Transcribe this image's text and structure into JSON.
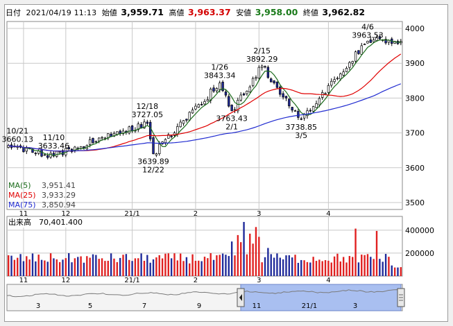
{
  "header": {
    "period_label": "日付",
    "datetime": "2021/04/19 11:13",
    "open_label": "始値",
    "open": "3,959.71",
    "high_label": "高値",
    "high": "3,963.37",
    "low_label": "安値",
    "low": "3,958.00",
    "close_label": "終値",
    "close": "3,962.82"
  },
  "colors": {
    "up": "#ffffff",
    "down": "#1f2a9a",
    "candle_edge": "#000000",
    "ma5": "#1a6b1a",
    "ma25": "#e00000",
    "ma75": "#1f2ad0",
    "high_value": "#d40000",
    "low_value": "#1a7a1a",
    "vol_up": "#e02020",
    "vol_down": "#1f2a9a",
    "navigator_fill": "#a9bff0",
    "grid": "#c8c8c8"
  },
  "legend": [
    {
      "label": "MA(5)",
      "value": "3,951.41",
      "color": "#1a6b1a"
    },
    {
      "label": "MA(25)",
      "value": "3,933.29",
      "color": "#e00000"
    },
    {
      "label": "MA(75)",
      "value": "3,850.94",
      "color": "#1f2ad0"
    }
  ],
  "volume": {
    "label": "出来高",
    "value": "70,401.400",
    "y_ticks": [
      400000,
      200000
    ],
    "y_tick_labels": [
      "400000",
      "200000"
    ]
  },
  "navigator": {
    "x_labels": [
      "3",
      "5",
      "7",
      "9",
      "11",
      "21/1",
      "3"
    ],
    "left_handle_icon": "chevron-left-icon",
    "right_handle_icon": "scroll-handle-icon"
  },
  "chart_data": {
    "type": "candlestick",
    "ylim": [
      3480,
      4020
    ],
    "y_ticks": [
      3500,
      3600,
      3700,
      3800,
      3900,
      4000
    ],
    "y_tick_labels": [
      "3500",
      "3600",
      "3700",
      "3800",
      "3900",
      "4000"
    ],
    "x_tick_labels": [
      "11",
      "12",
      "21/1",
      "2",
      "3",
      "4"
    ],
    "grid": true,
    "key_points": [
      {
        "x": 3,
        "close": 3660.13,
        "date": "10/21"
      },
      {
        "x": 15,
        "close": 3633.46,
        "date": "11/10"
      },
      {
        "x": 46,
        "close": 3727.05,
        "date": "12/18"
      },
      {
        "x": 48,
        "close": 3639.89,
        "date": "12/22"
      },
      {
        "x": 70,
        "close": 3843.34,
        "date": "1/26"
      },
      {
        "x": 74,
        "close": 3763.43,
        "date": "2/1"
      },
      {
        "x": 84,
        "close": 3892.29,
        "date": "2/15"
      },
      {
        "x": 97,
        "close": 3738.85,
        "date": "3/5"
      },
      {
        "x": 119,
        "close": 3963.53,
        "date": "4/6"
      },
      {
        "x": 128,
        "close": 3962.82,
        "date": "4/19"
      }
    ],
    "annotations": [
      {
        "x": 3,
        "value": 3660.13,
        "lines": [
          "10/21",
          "3660.13"
        ],
        "pos": "above"
      },
      {
        "x": 15,
        "value": 3633.46,
        "lines": [
          "11/10",
          "3633.46"
        ],
        "pos": "above"
      },
      {
        "x": 46,
        "value": 3727.05,
        "lines": [
          "12/18",
          "3727.05"
        ],
        "pos": "above"
      },
      {
        "x": 48,
        "value": 3639.89,
        "lines": [
          "3639.89",
          "12/22"
        ],
        "pos": "below"
      },
      {
        "x": 70,
        "value": 3843.34,
        "lines": [
          "1/26",
          "3843.34"
        ],
        "pos": "above"
      },
      {
        "x": 74,
        "value": 3763.43,
        "lines": [
          "3763.43",
          "2/1"
        ],
        "pos": "below"
      },
      {
        "x": 84,
        "value": 3892.29,
        "lines": [
          "2/15",
          "3892.29"
        ],
        "pos": "above"
      },
      {
        "x": 97,
        "value": 3738.85,
        "lines": [
          "3738.85",
          "3/5"
        ],
        "pos": "below"
      },
      {
        "x": 119,
        "value": 3963.53,
        "lines": [
          "4/6",
          "3963.53"
        ],
        "pos": "above"
      }
    ]
  }
}
